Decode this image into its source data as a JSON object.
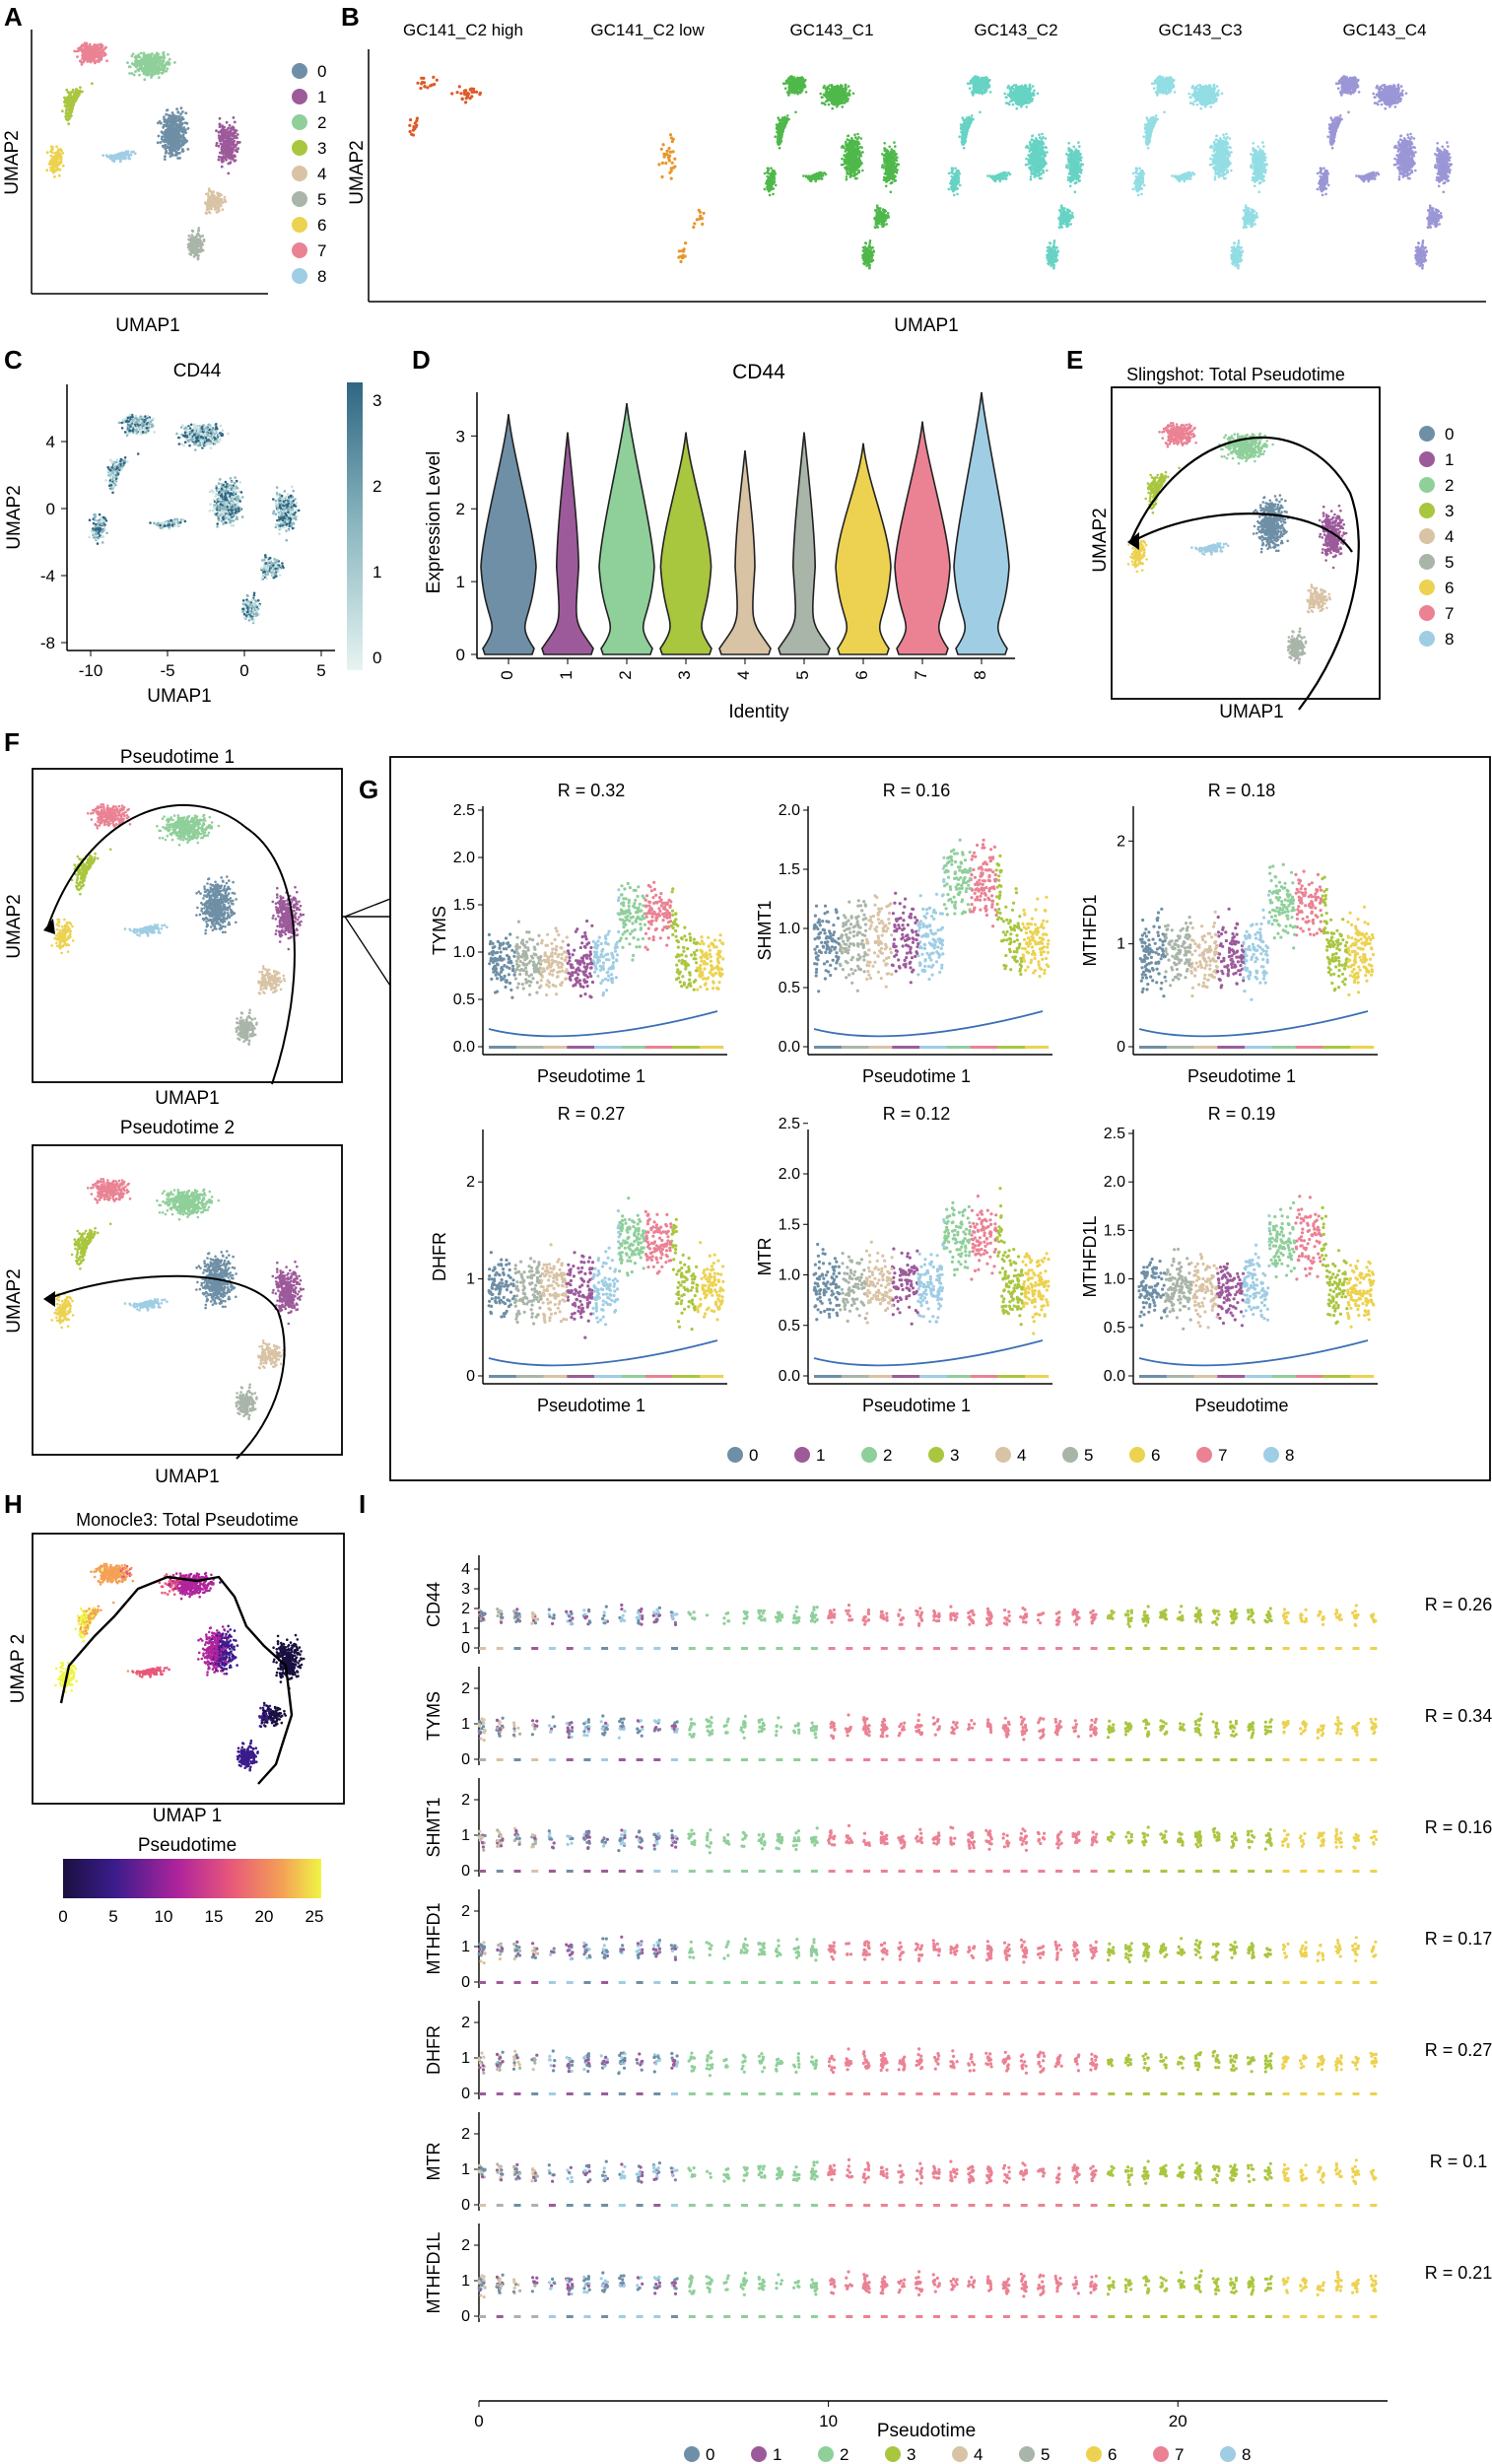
{
  "colors": {
    "0": "#6e8fa6",
    "1": "#9d5a9b",
    "2": "#8fcf9a",
    "3": "#a9c63f",
    "4": "#d9c3a5",
    "5": "#a9b5a8",
    "6": "#ecd250",
    "7": "#ea8294",
    "8": "#9fcde4"
  },
  "cluster_ids": [
    "0",
    "1",
    "2",
    "3",
    "4",
    "5",
    "6",
    "7",
    "8"
  ],
  "panels": {
    "A": "A",
    "B": "B",
    "C": "C",
    "D": "D",
    "E": "E",
    "F": "F",
    "G": "G",
    "H": "H",
    "I": "I"
  },
  "panelA": {
    "xlabel": "UMAP1",
    "ylabel": "UMAP2"
  },
  "panelB": {
    "titles": [
      "GC141_C2 high",
      "GC141_C2 low",
      "GC143_C1",
      "GC143_C2",
      "GC143_C3",
      "GC143_C4"
    ],
    "colors": [
      "#dd5a26",
      "#e8962a",
      "#4fb84b",
      "#66d3c4",
      "#93dde4",
      "#9b96d6"
    ],
    "xlabel": "UMAP1",
    "ylabel": "UMAP2"
  },
  "panelC": {
    "title": "CD44",
    "xlabel": "UMAP1",
    "ylabel": "UMAP2",
    "xticks": [
      "-10",
      "-5",
      "0",
      "5"
    ],
    "yticks": [
      "4",
      "0",
      "-4",
      "-8"
    ],
    "cbar_ticks": [
      "3",
      "2",
      "1",
      "0"
    ]
  },
  "panelE": {
    "title": "Slingshot: Total Pseudotime",
    "xlabel": "UMAP1",
    "ylabel": "UMAP2"
  },
  "panelF": {
    "title1": "Pseudotime 1",
    "title2": "Pseudotime 2",
    "xlabel": "UMAP1",
    "ylabel": "UMAP2"
  },
  "panelH": {
    "title": "Monocle3: Total Pseudotime",
    "xlabel": "UMAP 1",
    "ylabel": "UMAP 2",
    "cbar_title": "Pseudotime",
    "cbar_ticks": [
      "0",
      "5",
      "10",
      "15",
      "20",
      "25"
    ]
  },
  "chart_data": [
    {
      "type": "bar",
      "title": "CD44",
      "xlabel": "Identity",
      "ylabel": "Expression Level",
      "categories": [
        "0",
        "1",
        "2",
        "3",
        "4",
        "5",
        "6",
        "7",
        "8"
      ],
      "ylim": [
        0,
        3.6
      ],
      "yticks": [
        "0",
        "1",
        "2",
        "3"
      ],
      "max_values": [
        3.3,
        3.05,
        3.45,
        3.05,
        2.8,
        3.05,
        2.9,
        3.2,
        3.6
      ]
    },
    {
      "type": "scatter",
      "xlabel": "Pseudotime 1",
      "subplots": [
        {
          "gene": "TYMS",
          "r": "R = 0.32",
          "ymax": 2.5,
          "ticks": [
            "0.0",
            "0.5",
            "1.0",
            "1.5",
            "2.0",
            "2.5"
          ],
          "xlabel": "Pseudotime 1"
        },
        {
          "gene": "SHMT1",
          "r": "R = 0.16",
          "ymax": 2.0,
          "ticks": [
            "0.0",
            "0.5",
            "1.0",
            "1.5",
            "2.0"
          ],
          "xlabel": "Pseudotime 1"
        },
        {
          "gene": "MTHFD1",
          "r": "R = 0.18",
          "ymax": 2.3,
          "ticks": [
            "0",
            "1",
            "2"
          ],
          "xlabel": "Pseudotime 1"
        },
        {
          "gene": "DHFR",
          "r": "R = 0.27",
          "ymax": 2.5,
          "ticks": [
            "0",
            "1",
            "2"
          ],
          "xlabel": "Pseudotime 1"
        },
        {
          "gene": "MTR",
          "r": "R = 0.12",
          "ymax": 2.4,
          "ticks": [
            "0.0",
            "0.5",
            "1.0",
            "1.5",
            "2.0",
            "2.5"
          ],
          "xlabel": "Pseudotime 1"
        },
        {
          "gene": "MTHFD1L",
          "r": "R = 0.19",
          "ymax": 2.5,
          "ticks": [
            "0.0",
            "0.5",
            "1.0",
            "1.5",
            "2.0",
            "2.5"
          ],
          "xlabel": "Pseudotime"
        }
      ]
    },
    {
      "type": "scatter",
      "xlabel": "Pseudotime",
      "xticks": [
        "0",
        "10",
        "20"
      ],
      "xlim": [
        0,
        26
      ],
      "rows": [
        {
          "gene": "CD44",
          "r": "R = 0.26",
          "ticks": [
            "0",
            "1",
            "2",
            "3",
            "4"
          ],
          "ymax": 4.5
        },
        {
          "gene": "TYMS",
          "r": "R = 0.34",
          "ticks": [
            "0",
            "1",
            "2"
          ],
          "ymax": 2.5
        },
        {
          "gene": "SHMT1",
          "r": "R = 0.16",
          "ticks": [
            "0",
            "1",
            "2"
          ],
          "ymax": 2.5
        },
        {
          "gene": "MTHFD1",
          "r": "R = 0.17",
          "ticks": [
            "0",
            "1",
            "2"
          ],
          "ymax": 2.5
        },
        {
          "gene": "DHFR",
          "r": "R = 0.27",
          "ticks": [
            "0",
            "1",
            "2"
          ],
          "ymax": 2.5
        },
        {
          "gene": "MTR",
          "r": "R = 0.1",
          "ticks": [
            "0",
            "1",
            "2"
          ],
          "ymax": 2.5
        },
        {
          "gene": "MTHFD1L",
          "r": "R = 0.21",
          "ticks": [
            "0",
            "1",
            "2"
          ],
          "ymax": 2.5
        }
      ]
    }
  ]
}
